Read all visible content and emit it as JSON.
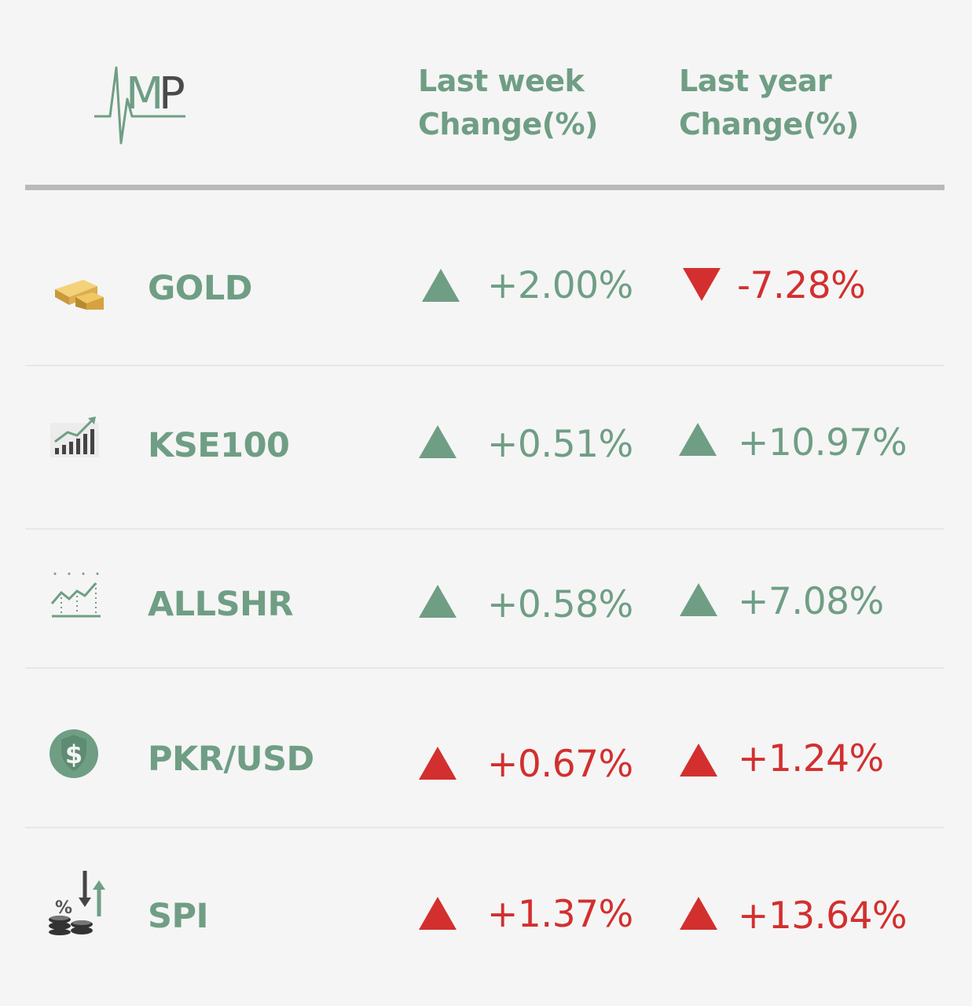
{
  "header": {
    "logo_text": "MP",
    "col_week": [
      "Last week",
      "Change(%)"
    ],
    "col_year": [
      "Last year",
      "Change(%)"
    ]
  },
  "colors": {
    "positive": "#6f9e84",
    "negative": "#d32f2f",
    "label": "#6f9e84"
  },
  "rows": [
    {
      "name": "GOLD",
      "icon": "gold-bar-icon",
      "week": {
        "value": "+2.00%",
        "direction": "up",
        "color": "green"
      },
      "year": {
        "value": "-7.28%",
        "direction": "down",
        "color": "red"
      }
    },
    {
      "name": "KSE100",
      "icon": "bar-chart-growth-icon",
      "week": {
        "value": "+0.51%",
        "direction": "up",
        "color": "green"
      },
      "year": {
        "value": "+10.97%",
        "direction": "up",
        "color": "green"
      }
    },
    {
      "name": "ALLSHR",
      "icon": "line-chart-icon",
      "week": {
        "value": "+0.58%",
        "direction": "up",
        "color": "green"
      },
      "year": {
        "value": "+7.08%",
        "direction": "up",
        "color": "green"
      }
    },
    {
      "name": "PKR/USD",
      "icon": "dollar-coin-icon",
      "week": {
        "value": "+0.67%",
        "direction": "up",
        "color": "red"
      },
      "year": {
        "value": "+1.24%",
        "direction": "up",
        "color": "red"
      }
    },
    {
      "name": "SPI",
      "icon": "inflation-coins-icon",
      "week": {
        "value": "+1.37%",
        "direction": "up",
        "color": "red"
      },
      "year": {
        "value": "+13.64%",
        "direction": "up",
        "color": "red"
      }
    }
  ]
}
